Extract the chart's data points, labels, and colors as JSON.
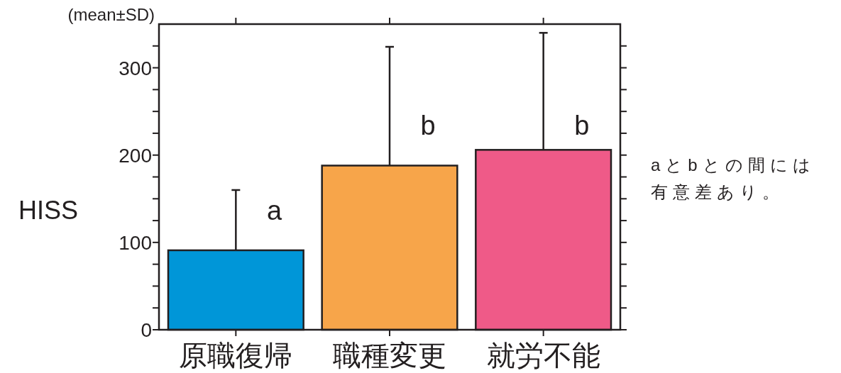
{
  "chart_data": {
    "type": "bar",
    "ylabel": "HISS",
    "categories": [
      "原職復帰",
      "職種変更",
      "就労不能"
    ],
    "values": [
      91,
      188,
      206
    ],
    "colors": [
      "#0096d8",
      "#f7a54a",
      "#ef5a88"
    ],
    "errors": [
      69,
      136,
      134
    ],
    "ylim": [
      0,
      350
    ],
    "yticks": [
      0,
      {
        "value": 25,
        "label": null
      },
      {
        "value": 50,
        "label": null
      },
      {
        "value": 75,
        "label": null
      },
      100,
      {
        "value": 125,
        "label": null
      },
      {
        "value": 150,
        "label": null
      },
      {
        "value": 175,
        "label": null
      },
      200,
      {
        "value": 225,
        "label": null
      },
      {
        "value": 250,
        "label": null
      },
      {
        "value": 275,
        "label": null
      },
      300,
      {
        "value": 325,
        "label": null
      }
    ],
    "annotations": [
      "(mean±SD)",
      {
        "text": "a",
        "x": "原職復帰",
        "y": 137
      },
      {
        "text": "b",
        "x": "職種変更",
        "y": 235
      },
      {
        "text": "b",
        "x": "就労不能",
        "y": 235
      },
      "aとbとの間には有意差あり。"
    ]
  }
}
